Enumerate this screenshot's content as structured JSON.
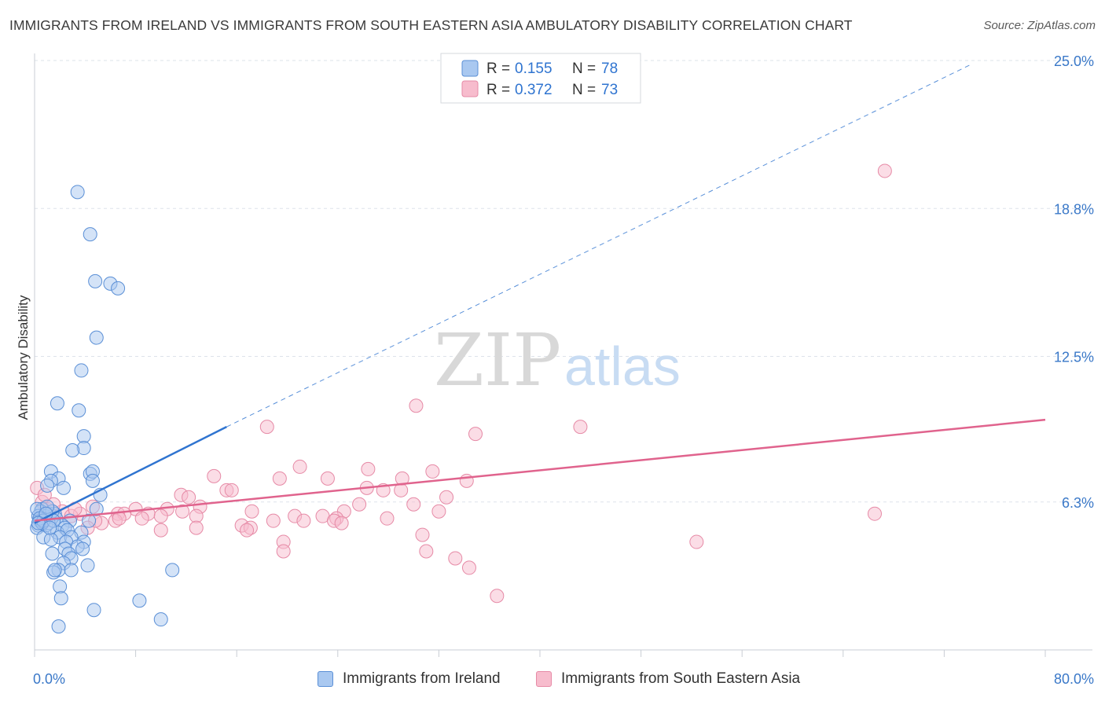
{
  "header": {
    "title": "IMMIGRANTS FROM IRELAND VS IMMIGRANTS FROM SOUTH EASTERN ASIA AMBULATORY DISABILITY CORRELATION CHART",
    "source": "Source: ZipAtlas.com"
  },
  "watermark": {
    "zip": "ZIP",
    "atlas": "atlas"
  },
  "legend_top": [
    {
      "r_label": "R =",
      "r_value": "0.155",
      "n_label": "N =",
      "n_value": "78"
    },
    {
      "r_label": "R =",
      "r_value": "0.372",
      "n_label": "N =",
      "n_value": "73"
    }
  ],
  "colors": {
    "ireland_fill": "#a9c8f0",
    "ireland_stroke": "#5a8fd6",
    "ireland_line": "#2f74d0",
    "sea_fill": "#f7bccd",
    "sea_stroke": "#e68aa6",
    "sea_line": "#e0638d",
    "tick_text": "#3a78c8",
    "grid": "#dde3ea"
  },
  "chart_data": {
    "type": "scatter",
    "title": "IMMIGRANTS FROM IRELAND VS IMMIGRANTS FROM SOUTH EASTERN ASIA AMBULATORY DISABILITY CORRELATION CHART",
    "xlabel": "",
    "ylabel": "Ambulatory Disability",
    "xlim": [
      0,
      80
    ],
    "ylim": [
      0,
      25
    ],
    "x_tick_labels": [
      "0.0%",
      "80.0%"
    ],
    "y_ticks": [
      6.3,
      12.5,
      18.8,
      25.0
    ],
    "y_tick_labels": [
      "6.3%",
      "12.5%",
      "18.8%",
      "25.0%"
    ],
    "grid": true,
    "legend_position": "top-center",
    "series": [
      {
        "name": "Immigrants from Ireland",
        "r": 0.155,
        "n": 78,
        "trend": {
          "x0": 0,
          "y0": 5.4,
          "x1": 15.2,
          "y1": 9.5,
          "extended_to": [
            74.0,
            24.9
          ]
        },
        "points": [
          [
            3.4,
            19.5
          ],
          [
            4.4,
            17.7
          ],
          [
            4.8,
            15.7
          ],
          [
            6.0,
            15.6
          ],
          [
            6.6,
            15.4
          ],
          [
            4.9,
            13.3
          ],
          [
            3.7,
            11.9
          ],
          [
            1.8,
            10.5
          ],
          [
            3.5,
            10.2
          ],
          [
            3.9,
            9.1
          ],
          [
            3.9,
            8.6
          ],
          [
            3.0,
            8.5
          ],
          [
            4.4,
            7.5
          ],
          [
            4.6,
            7.6
          ],
          [
            1.3,
            7.6
          ],
          [
            1.9,
            7.3
          ],
          [
            1.3,
            7.2
          ],
          [
            4.6,
            7.2
          ],
          [
            2.3,
            6.9
          ],
          [
            1.0,
            7.0
          ],
          [
            5.2,
            6.6
          ],
          [
            4.9,
            6.0
          ],
          [
            0.6,
            6.0
          ],
          [
            0.5,
            5.9
          ],
          [
            1.2,
            5.8
          ],
          [
            1.6,
            5.8
          ],
          [
            0.3,
            5.7
          ],
          [
            0.4,
            5.5
          ],
          [
            0.3,
            5.3
          ],
          [
            1.7,
            5.6
          ],
          [
            2.8,
            5.5
          ],
          [
            4.3,
            5.5
          ],
          [
            2.2,
            5.3
          ],
          [
            2.4,
            5.2
          ],
          [
            0.2,
            5.2
          ],
          [
            0.9,
            5.3
          ],
          [
            1.8,
            5.0
          ],
          [
            2.6,
            5.1
          ],
          [
            3.7,
            5.0
          ],
          [
            2.0,
            4.8
          ],
          [
            2.9,
            4.8
          ],
          [
            0.7,
            4.8
          ],
          [
            1.3,
            4.7
          ],
          [
            2.5,
            4.6
          ],
          [
            3.9,
            4.6
          ],
          [
            3.4,
            4.4
          ],
          [
            2.4,
            4.3
          ],
          [
            3.8,
            4.3
          ],
          [
            1.4,
            4.1
          ],
          [
            2.7,
            4.1
          ],
          [
            2.9,
            3.9
          ],
          [
            2.3,
            3.7
          ],
          [
            4.2,
            3.6
          ],
          [
            1.9,
            3.4
          ],
          [
            2.9,
            3.4
          ],
          [
            1.5,
            3.3
          ],
          [
            1.6,
            3.4
          ],
          [
            10.9,
            3.4
          ],
          [
            2.0,
            2.7
          ],
          [
            2.1,
            2.2
          ],
          [
            4.7,
            1.7
          ],
          [
            8.3,
            2.1
          ],
          [
            10.0,
            1.3
          ],
          [
            1.9,
            1.0
          ],
          [
            0.9,
            5.6
          ],
          [
            1.1,
            5.4
          ],
          [
            0.5,
            5.5
          ],
          [
            0.8,
            5.7
          ],
          [
            1.4,
            5.9
          ],
          [
            0.2,
            6.0
          ],
          [
            1.0,
            6.1
          ],
          [
            0.6,
            5.4
          ],
          [
            0.4,
            5.6
          ],
          [
            0.7,
            5.5
          ],
          [
            1.5,
            5.5
          ],
          [
            0.9,
            5.8
          ],
          [
            0.3,
            5.4
          ],
          [
            1.2,
            5.2
          ]
        ]
      },
      {
        "name": "Immigrants from South Eastern Asia",
        "r": 0.372,
        "n": 73,
        "trend": {
          "x0": 0,
          "y0": 5.5,
          "x1": 80,
          "y1": 9.8
        },
        "points": [
          [
            67.3,
            20.4
          ],
          [
            30.2,
            10.4
          ],
          [
            18.4,
            9.5
          ],
          [
            43.2,
            9.5
          ],
          [
            34.9,
            9.2
          ],
          [
            21.0,
            7.8
          ],
          [
            26.4,
            7.7
          ],
          [
            31.5,
            7.6
          ],
          [
            14.2,
            7.4
          ],
          [
            19.4,
            7.3
          ],
          [
            23.2,
            7.3
          ],
          [
            29.1,
            7.3
          ],
          [
            34.2,
            7.2
          ],
          [
            26.3,
            6.9
          ],
          [
            15.2,
            6.8
          ],
          [
            15.6,
            6.8
          ],
          [
            27.6,
            6.8
          ],
          [
            29.0,
            6.8
          ],
          [
            11.6,
            6.6
          ],
          [
            12.2,
            6.5
          ],
          [
            32.6,
            6.5
          ],
          [
            25.7,
            6.2
          ],
          [
            30.0,
            6.2
          ],
          [
            13.1,
            6.1
          ],
          [
            8.0,
            6.0
          ],
          [
            10.5,
            6.0
          ],
          [
            11.7,
            5.9
          ],
          [
            17.2,
            5.9
          ],
          [
            32.0,
            5.9
          ],
          [
            24.5,
            5.9
          ],
          [
            6.6,
            5.8
          ],
          [
            7.1,
            5.8
          ],
          [
            9.0,
            5.8
          ],
          [
            10.0,
            5.7
          ],
          [
            12.8,
            5.7
          ],
          [
            20.6,
            5.7
          ],
          [
            22.8,
            5.7
          ],
          [
            23.9,
            5.6
          ],
          [
            27.9,
            5.6
          ],
          [
            8.5,
            5.6
          ],
          [
            18.9,
            5.5
          ],
          [
            21.3,
            5.5
          ],
          [
            23.7,
            5.5
          ],
          [
            6.4,
            5.5
          ],
          [
            5.3,
            5.4
          ],
          [
            6.7,
            5.6
          ],
          [
            4.8,
            5.5
          ],
          [
            16.4,
            5.3
          ],
          [
            24.3,
            5.4
          ],
          [
            17.1,
            5.2
          ],
          [
            12.8,
            5.2
          ],
          [
            16.8,
            5.1
          ],
          [
            10.0,
            5.1
          ],
          [
            4.2,
            5.2
          ],
          [
            30.7,
            4.9
          ],
          [
            19.7,
            4.6
          ],
          [
            52.4,
            4.6
          ],
          [
            66.5,
            5.8
          ],
          [
            19.7,
            4.2
          ],
          [
            31.0,
            4.2
          ],
          [
            33.3,
            3.9
          ],
          [
            34.4,
            3.5
          ],
          [
            36.6,
            2.3
          ],
          [
            0.6,
            6.3
          ],
          [
            1.0,
            6.0
          ],
          [
            2.2,
            5.9
          ],
          [
            3.6,
            5.8
          ],
          [
            0.2,
            6.9
          ],
          [
            1.5,
            6.2
          ],
          [
            2.9,
            5.7
          ],
          [
            0.8,
            6.6
          ],
          [
            3.2,
            6.0
          ],
          [
            4.6,
            6.1
          ]
        ]
      }
    ]
  },
  "legend_bottom": [
    {
      "label": "Immigrants from Ireland"
    },
    {
      "label": "Immigrants from South Eastern Asia"
    }
  ]
}
